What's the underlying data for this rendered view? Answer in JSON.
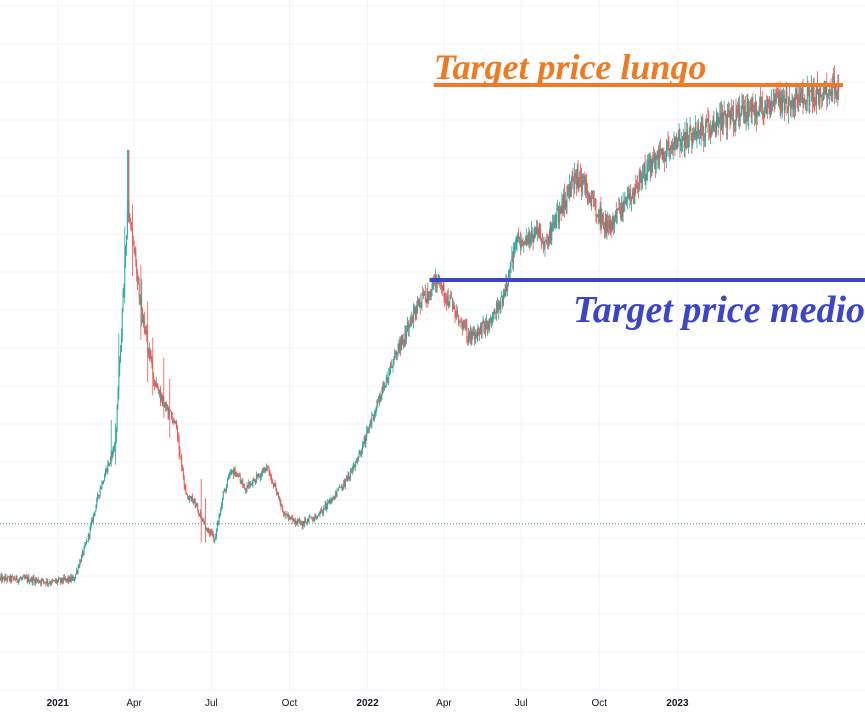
{
  "chart_data": {
    "type": "candlestick",
    "title": "",
    "xlabel": "",
    "ylabel": "",
    "x_ticks": [
      {
        "label": "2021",
        "date": "2021-01-01",
        "emphasis": true
      },
      {
        "label": "Apr",
        "date": "2021-04-01",
        "emphasis": false
      },
      {
        "label": "Jul",
        "date": "2021-07-01",
        "emphasis": false
      },
      {
        "label": "Oct",
        "date": "2021-10-01",
        "emphasis": false
      },
      {
        "label": "2022",
        "date": "2022-01-01",
        "emphasis": true
      },
      {
        "label": "Apr",
        "date": "2022-04-01",
        "emphasis": false
      },
      {
        "label": "Jul",
        "date": "2022-07-01",
        "emphasis": false
      },
      {
        "label": "Oct",
        "date": "2022-10-01",
        "emphasis": false
      },
      {
        "label": "2023",
        "date": "2023-01-01",
        "emphasis": true
      }
    ],
    "x_range": [
      "2020-10-25",
      "2023-08-10"
    ],
    "y_range": [
      0,
      100
    ],
    "grid": true,
    "series": [
      {
        "trend_points": [
          [
            "2020-10-25",
            14
          ],
          [
            "2020-11-25",
            14
          ],
          [
            "2020-12-25",
            13.5
          ],
          [
            "2021-01-20",
            14
          ],
          [
            "2021-02-05",
            20
          ],
          [
            "2021-02-20",
            28
          ],
          [
            "2021-03-10",
            35
          ],
          [
            "2021-03-25",
            72
          ],
          [
            "2021-04-10",
            55
          ],
          [
            "2021-04-25",
            44
          ],
          [
            "2021-05-10",
            40
          ],
          [
            "2021-05-20",
            38
          ],
          [
            "2021-06-01",
            27
          ],
          [
            "2021-06-10",
            26
          ],
          [
            "2021-06-25",
            22
          ],
          [
            "2021-07-05",
            20
          ],
          [
            "2021-07-15",
            27
          ],
          [
            "2021-07-25",
            31
          ],
          [
            "2021-08-10",
            28
          ],
          [
            "2021-09-05",
            31
          ],
          [
            "2021-09-25",
            24
          ],
          [
            "2021-10-15",
            22.5
          ],
          [
            "2021-11-05",
            24
          ],
          [
            "2021-12-01",
            28
          ],
          [
            "2021-12-20",
            32
          ],
          [
            "2022-01-10",
            40
          ],
          [
            "2022-02-01",
            48
          ],
          [
            "2022-03-01",
            56
          ],
          [
            "2022-03-25",
            60
          ],
          [
            "2022-04-15",
            55
          ],
          [
            "2022-05-01",
            51
          ],
          [
            "2022-05-20",
            53
          ],
          [
            "2022-06-10",
            57
          ],
          [
            "2022-06-25",
            66
          ],
          [
            "2022-07-15",
            67
          ],
          [
            "2022-08-01",
            66
          ],
          [
            "2022-08-20",
            72
          ],
          [
            "2022-09-05",
            76
          ],
          [
            "2022-09-20",
            73
          ],
          [
            "2022-10-10",
            68
          ],
          [
            "2022-10-25",
            70
          ],
          [
            "2022-11-20",
            76
          ],
          [
            "2022-12-20",
            80
          ],
          [
            "2023-02-15",
            84
          ],
          [
            "2023-04-15",
            87
          ],
          [
            "2023-06-01",
            88
          ],
          [
            "2023-07-10",
            90
          ]
        ],
        "up_color": "#26a69a",
        "down_color": "#ef5350"
      }
    ],
    "reference_line": {
      "value": 22.5
    },
    "annotations": [
      {
        "text": "Target price lungo",
        "color": "#f07a22",
        "level": 90,
        "from": "2022-03-20",
        "to": "2023-07-15"
      },
      {
        "text": "Target price medio",
        "color": "#3c44c8",
        "level": 60,
        "from": "2022-03-15",
        "to": "2023-08-10"
      }
    ]
  },
  "colors": {
    "background": "#ffffff",
    "grid": "#f0f3fa",
    "reference_line": "#4e8e8a",
    "axis_text": "#131722"
  }
}
